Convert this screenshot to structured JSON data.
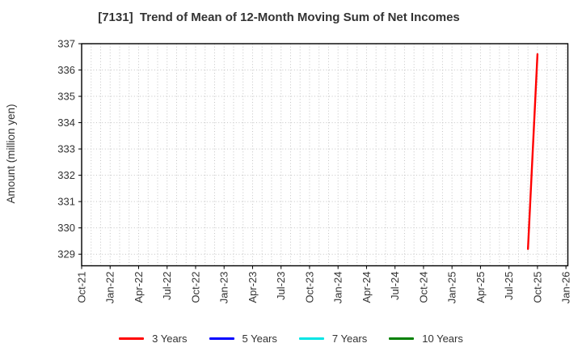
{
  "chart_data": {
    "type": "line",
    "title": "[7131]  Trend of Mean of 12-Month Moving Sum of Net Incomes",
    "ylabel": "Amount (million yen)",
    "y_ticks": [
      337,
      336,
      335,
      334,
      333,
      332,
      331,
      330,
      329
    ],
    "ylim": [
      328.56,
      337
    ],
    "x_tick_labels": [
      "Oct-21",
      "Jan-22",
      "Apr-22",
      "Jul-22",
      "Oct-22",
      "Jan-23",
      "Apr-23",
      "Jul-23",
      "Oct-23",
      "Jan-24",
      "Apr-24",
      "Jul-24",
      "Oct-24",
      "Jan-25",
      "Apr-25",
      "Jul-25",
      "Oct-25",
      "Jan-26"
    ],
    "x_tick_interval_months": 3,
    "xlim_months": [
      0,
      51.2
    ],
    "months_total": 51,
    "grid": {
      "vertical": "monthly dotted",
      "horizontal": "every 1 million yen dotted",
      "color": "#c3c3c3"
    },
    "axis_color": "#000000",
    "legend_position": "bottom-center",
    "series": [
      {
        "id": "3-years",
        "name": "3 Years",
        "color": "#ff0000",
        "points": [
          {
            "x_label": "Sep-25",
            "month_index": 47,
            "value": 329.2
          },
          {
            "x_label": "Oct-25",
            "month_index": 48,
            "value": 336.6
          }
        ]
      },
      {
        "id": "5-years",
        "name": "5 Years",
        "color": "#0000ff",
        "points": []
      },
      {
        "id": "7-years",
        "name": "7 Years",
        "color": "#00e5e5",
        "points": []
      },
      {
        "id": "10-years",
        "name": "10 Years",
        "color": "#008000",
        "points": []
      }
    ]
  }
}
